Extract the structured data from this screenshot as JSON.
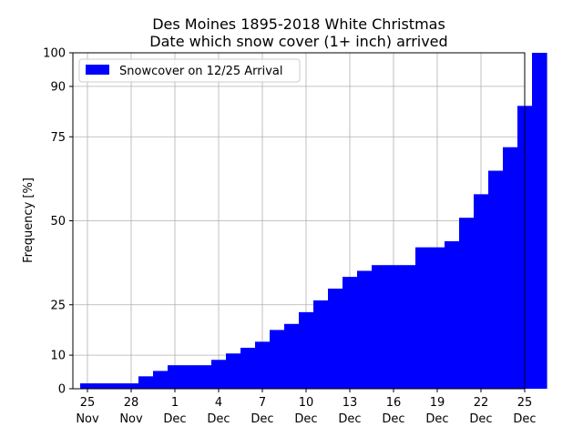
{
  "chart_data": {
    "type": "bar",
    "title_line1": "Des Moines 1895-2018 White Christmas",
    "title_line2": "Date which snow cover (1+ inch) arrived",
    "xlabel": "",
    "ylabel": "Frequency [%]",
    "xlim": [
      -1,
      30
    ],
    "ylim": [
      0,
      100
    ],
    "grid": true,
    "legend": {
      "label": "Snowcover on 12/25 Arrival",
      "placement": "top-left"
    },
    "y_ticks": [
      0,
      10,
      25,
      50,
      75,
      90,
      100
    ],
    "x_ticks": [
      {
        "pos": 0,
        "day": "25",
        "month": "Nov"
      },
      {
        "pos": 3,
        "day": "28",
        "month": "Nov"
      },
      {
        "pos": 6,
        "day": "1",
        "month": "Dec"
      },
      {
        "pos": 9,
        "day": "4",
        "month": "Dec"
      },
      {
        "pos": 12,
        "day": "7",
        "month": "Dec"
      },
      {
        "pos": 15,
        "day": "10",
        "month": "Dec"
      },
      {
        "pos": 18,
        "day": "13",
        "month": "Dec"
      },
      {
        "pos": 21,
        "day": "16",
        "month": "Dec"
      },
      {
        "pos": 24,
        "day": "19",
        "month": "Dec"
      },
      {
        "pos": 27,
        "day": "22",
        "month": "Dec"
      },
      {
        "pos": 30,
        "day": "25",
        "month": "Dec"
      }
    ],
    "categories": [
      "Nov 24",
      "Nov 25",
      "Nov 26",
      "Nov 27",
      "Nov 28",
      "Nov 29",
      "Nov 30",
      "Dec 1",
      "Dec 2",
      "Dec 3",
      "Dec 4",
      "Dec 5",
      "Dec 6",
      "Dec 7",
      "Dec 8",
      "Dec 9",
      "Dec 10",
      "Dec 11",
      "Dec 12",
      "Dec 13",
      "Dec 14",
      "Dec 15",
      "Dec 16",
      "Dec 17",
      "Dec 18",
      "Dec 19",
      "Dec 20",
      "Dec 21",
      "Dec 22",
      "Dec 23",
      "Dec 24",
      "Dec 25"
    ],
    "values": [
      1.6,
      1.6,
      1.6,
      1.6,
      3.7,
      5.3,
      7.0,
      7.0,
      7.0,
      8.6,
      10.5,
      12.2,
      14.0,
      17.5,
      19.3,
      22.8,
      26.3,
      29.8,
      33.3,
      35.1,
      36.8,
      36.8,
      36.8,
      42.1,
      42.1,
      43.9,
      50.9,
      57.9,
      64.9,
      71.9,
      84.2,
      100.0
    ],
    "color": "#0000ff"
  }
}
